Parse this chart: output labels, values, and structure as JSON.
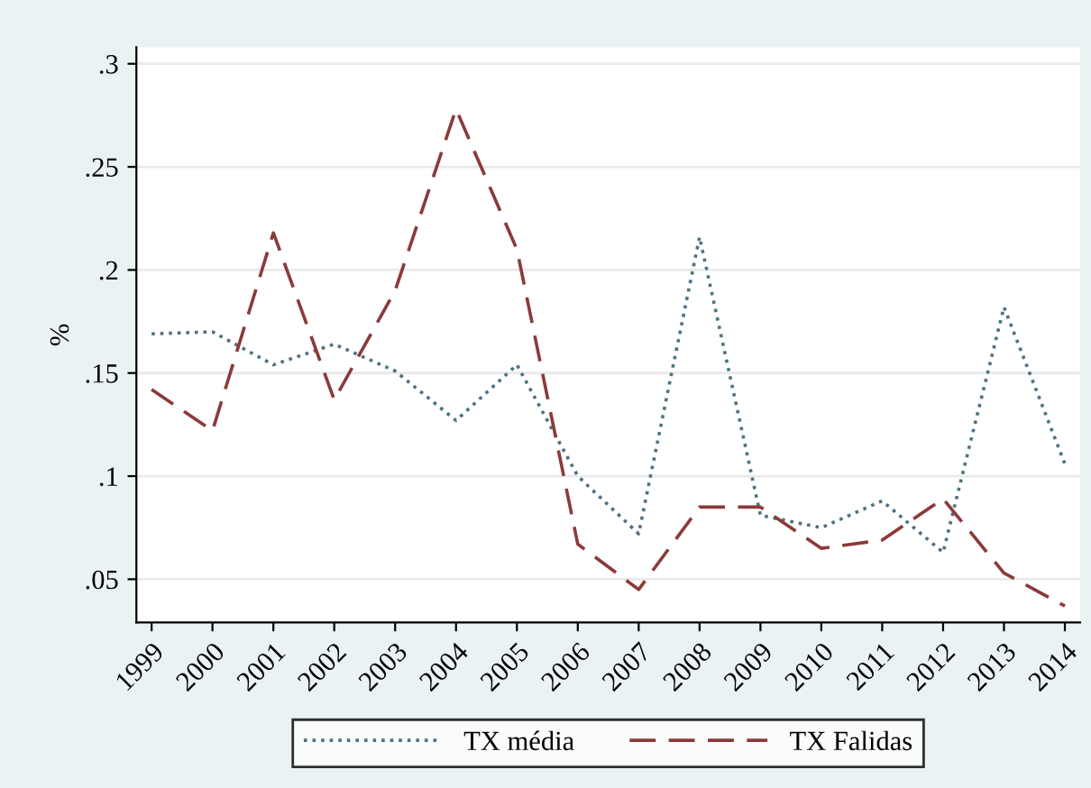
{
  "chart_data": {
    "type": "line",
    "ylabel": "%",
    "categories": [
      "1999",
      "2000",
      "2001",
      "2002",
      "2003",
      "2004",
      "2005",
      "2006",
      "2007",
      "2008",
      "2009",
      "2010",
      "2011",
      "2012",
      "2013",
      "2014"
    ],
    "series": [
      {
        "name": "TX média",
        "color": "#4f7282",
        "line_style": "dotted",
        "values": [
          0.169,
          0.17,
          0.154,
          0.164,
          0.151,
          0.127,
          0.154,
          0.1,
          0.072,
          0.216,
          0.081,
          0.075,
          0.088,
          0.063,
          0.182,
          0.106
        ]
      },
      {
        "name": "TX Falidas",
        "color": "#8b3a3a",
        "line_style": "dashed",
        "values": [
          0.142,
          0.122,
          0.218,
          0.137,
          0.19,
          0.278,
          0.21,
          0.067,
          0.045,
          0.085,
          0.085,
          0.065,
          0.069,
          0.089,
          0.053,
          0.037
        ]
      }
    ],
    "ylim": [
      0.029,
      0.308
    ],
    "yticks": [
      {
        "value": 0.05,
        "label": ".05"
      },
      {
        "value": 0.1,
        "label": ".1"
      },
      {
        "value": 0.15,
        "label": ".15"
      },
      {
        "value": 0.2,
        "label": ".2"
      },
      {
        "value": 0.25,
        "label": ".25"
      },
      {
        "value": 0.3,
        "label": ".3"
      }
    ],
    "grid": "y",
    "legend": "bottom",
    "marker": "none"
  }
}
